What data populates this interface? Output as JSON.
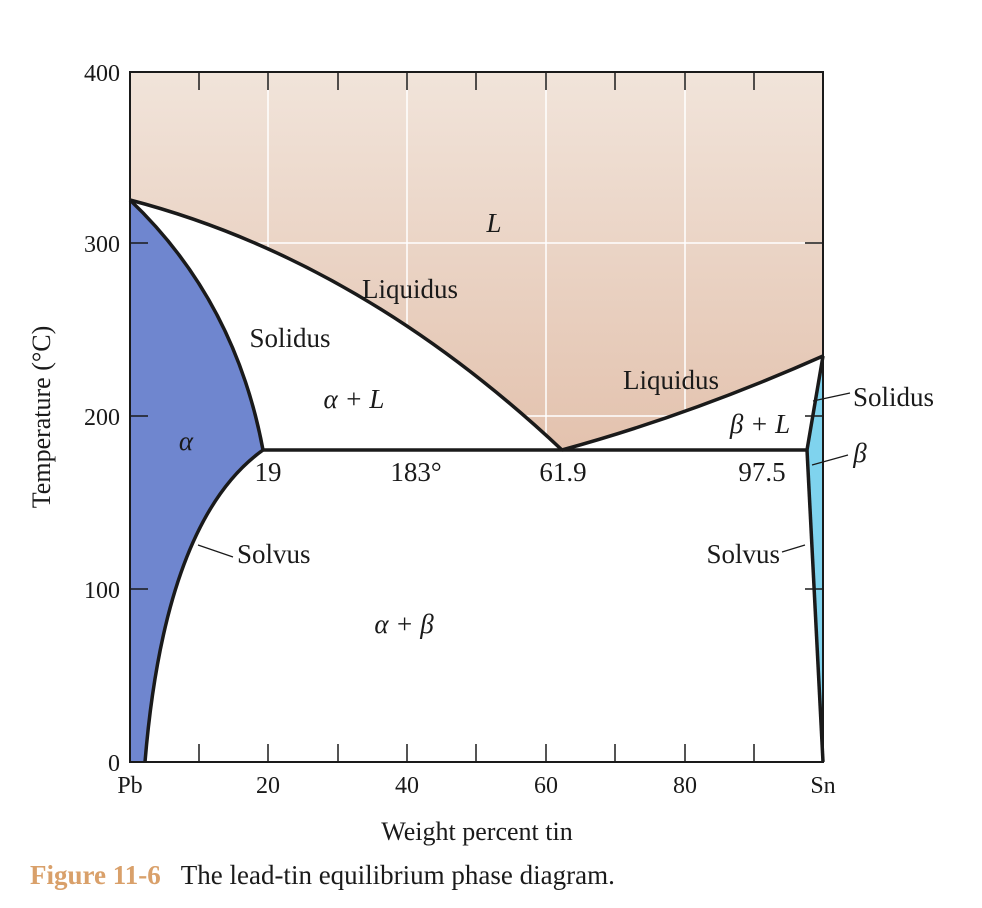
{
  "diagram": {
    "y_axis": {
      "label": "Temperature (°C)",
      "ticks": [
        "400",
        "300",
        "200",
        "100",
        "0"
      ]
    },
    "x_axis": {
      "label": "Weight percent tin",
      "ticks": [
        "Pb",
        "20",
        "40",
        "60",
        "80",
        "Sn"
      ]
    },
    "regions": {
      "liquid": "L",
      "alpha": "α",
      "beta": "β",
      "alpha_liquid": "α + L",
      "beta_liquid": "β + L",
      "alpha_beta": "α + β"
    },
    "boundaries": {
      "liquidus_left": "Liquidus",
      "liquidus_right": "Liquidus",
      "solidus_left": "Solidus",
      "solidus_right": "Solidus",
      "solvus_left": "Solvus",
      "solvus_right": "Solvus"
    },
    "eutectic": {
      "alpha_limit": "19",
      "temperature": "183°",
      "eutectic_composition": "61.9",
      "beta_limit": "97.5"
    },
    "colors": {
      "liquid_top": "#f1e4da",
      "liquid_bottom": "#e3c2ae",
      "alpha": "#6f86cf",
      "beta": "#7fd3ee",
      "grid": "#ffffff",
      "frame": "#1a1a1a",
      "caption_accent": "#d9a06a"
    }
  },
  "caption": {
    "figure_number": "Figure 11-6",
    "text": "The lead-tin equilibrium phase diagram."
  }
}
